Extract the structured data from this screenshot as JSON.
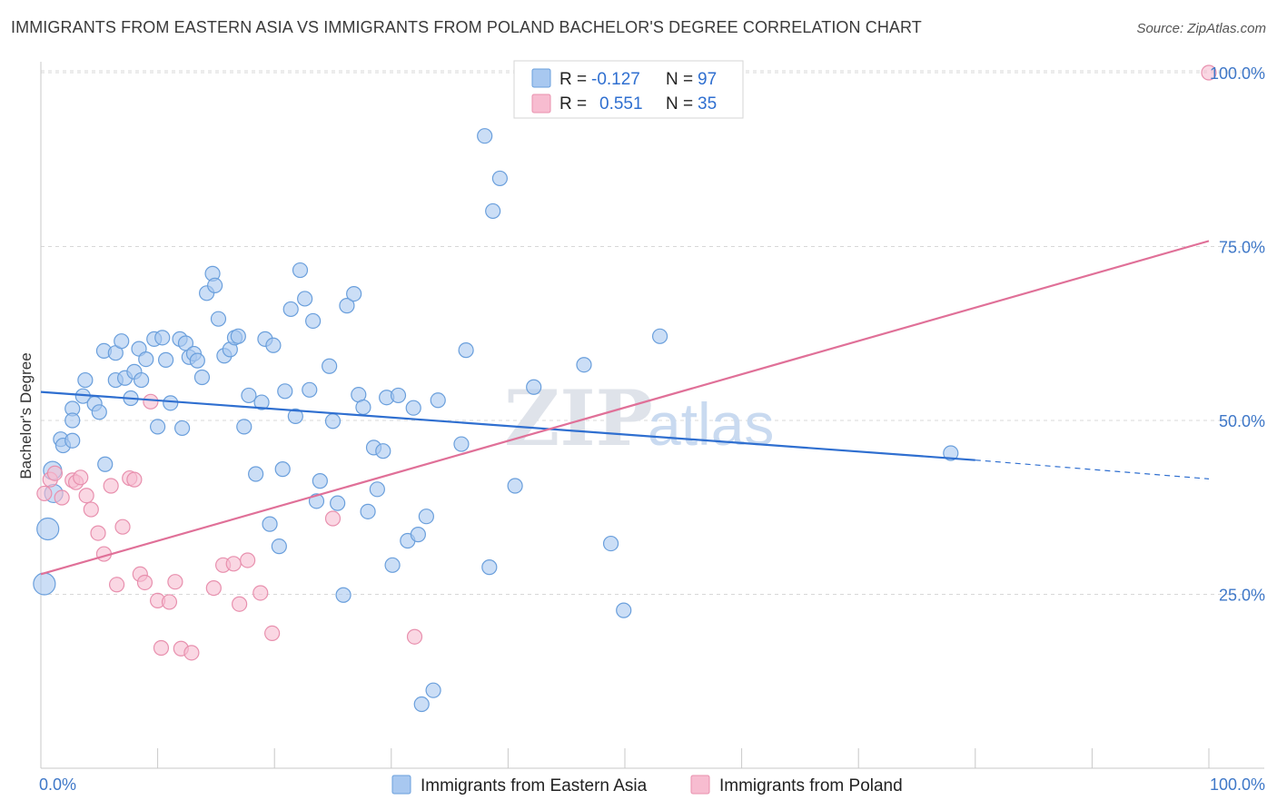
{
  "header": {
    "title": "IMMIGRANTS FROM EASTERN ASIA VS IMMIGRANTS FROM POLAND BACHELOR'S DEGREE CORRELATION CHART",
    "source": "Source: ZipAtlas.com"
  },
  "watermark": {
    "part1": "ZIP",
    "part2": "atlas"
  },
  "legend": {
    "r_label": "R =",
    "n_label": "N =",
    "series1": {
      "r": "-0.127",
      "n": "97"
    },
    "series2": {
      "r": "0.551",
      "n": "35"
    }
  },
  "colors": {
    "blue_fill": "#a8c8f0",
    "blue_stroke": "#6a9fdc",
    "blue_line": "#2f6fd0",
    "pink_fill": "#f7bcd0",
    "pink_stroke": "#e890ae",
    "pink_line": "#e07098",
    "grid": "#d8d8d8",
    "tick_label": "#3f78c8"
  },
  "chart_data": {
    "type": "scatter",
    "title": "IMMIGRANTS FROM EASTERN ASIA VS IMMIGRANTS FROM POLAND BACHELOR'S DEGREE CORRELATION CHART",
    "xlabel": "",
    "ylabel": "Bachelor's Degree",
    "xlim": [
      0,
      100
    ],
    "ylim": [
      0,
      102
    ],
    "x_ticks": [
      "0.0%",
      "100.0%"
    ],
    "y_ticks": [
      {
        "value": 25,
        "label": "25.0%"
      },
      {
        "value": 50,
        "label": "50.0%"
      },
      {
        "value": 75,
        "label": "75.0%"
      },
      {
        "value": 100,
        "label": "100.0%"
      }
    ],
    "grid": "horizontal dashed",
    "legend_position": "top-center",
    "series": [
      {
        "name": "Immigrants from Eastern Asia",
        "color": "#a8c8f0",
        "points": [
          [
            1,
            42.8
          ],
          [
            0.6,
            34.4
          ],
          [
            0.3,
            26.5
          ],
          [
            1.1,
            39.5
          ],
          [
            1.7,
            47.3
          ],
          [
            1.9,
            46.4
          ],
          [
            2.7,
            47.1
          ],
          [
            2.7,
            51.7
          ],
          [
            2.7,
            50.0
          ],
          [
            3.8,
            55.8
          ],
          [
            3.6,
            53.5
          ],
          [
            4.6,
            52.4
          ],
          [
            5.0,
            51.2
          ],
          [
            5.5,
            43.7
          ],
          [
            5.4,
            60.0
          ],
          [
            6.4,
            59.7
          ],
          [
            6.4,
            55.8
          ],
          [
            6.9,
            61.4
          ],
          [
            7.2,
            56.1
          ],
          [
            7.7,
            53.2
          ],
          [
            8.0,
            57.0
          ],
          [
            8.4,
            60.3
          ],
          [
            8.6,
            55.8
          ],
          [
            9.0,
            58.8
          ],
          [
            9.7,
            61.7
          ],
          [
            10.0,
            49.1
          ],
          [
            10.4,
            61.9
          ],
          [
            10.7,
            58.7
          ],
          [
            11.1,
            52.5
          ],
          [
            11.9,
            61.7
          ],
          [
            12.1,
            48.9
          ],
          [
            12.4,
            61.1
          ],
          [
            12.7,
            59.1
          ],
          [
            13.1,
            59.6
          ],
          [
            13.4,
            58.6
          ],
          [
            13.8,
            56.2
          ],
          [
            14.2,
            68.3
          ],
          [
            14.7,
            71.1
          ],
          [
            14.9,
            69.4
          ],
          [
            15.2,
            64.6
          ],
          [
            15.7,
            59.3
          ],
          [
            16.2,
            60.2
          ],
          [
            16.6,
            61.9
          ],
          [
            16.9,
            62.1
          ],
          [
            17.4,
            49.1
          ],
          [
            17.8,
            53.6
          ],
          [
            18.4,
            42.3
          ],
          [
            18.9,
            52.6
          ],
          [
            19.2,
            61.7
          ],
          [
            19.6,
            35.1
          ],
          [
            19.9,
            60.8
          ],
          [
            20.4,
            31.9
          ],
          [
            20.7,
            43.0
          ],
          [
            20.9,
            54.2
          ],
          [
            21.4,
            66.0
          ],
          [
            21.8,
            50.6
          ],
          [
            22.2,
            71.6
          ],
          [
            22.6,
            67.5
          ],
          [
            23.0,
            54.4
          ],
          [
            23.3,
            64.3
          ],
          [
            23.6,
            38.4
          ],
          [
            23.9,
            41.3
          ],
          [
            24.7,
            57.8
          ],
          [
            25.0,
            49.9
          ],
          [
            25.4,
            38.1
          ],
          [
            25.9,
            24.9
          ],
          [
            26.2,
            66.5
          ],
          [
            26.8,
            68.2
          ],
          [
            27.2,
            53.7
          ],
          [
            27.6,
            51.9
          ],
          [
            28.0,
            36.9
          ],
          [
            28.5,
            46.1
          ],
          [
            28.8,
            40.1
          ],
          [
            29.3,
            45.6
          ],
          [
            29.6,
            53.3
          ],
          [
            30.1,
            29.2
          ],
          [
            30.6,
            53.6
          ],
          [
            31.4,
            32.7
          ],
          [
            31.9,
            51.8
          ],
          [
            32.3,
            33.6
          ],
          [
            32.6,
            9.2
          ],
          [
            33.0,
            36.2
          ],
          [
            33.6,
            11.2
          ],
          [
            34.0,
            52.9
          ],
          [
            36.0,
            46.6
          ],
          [
            36.4,
            60.1
          ],
          [
            38.0,
            90.9
          ],
          [
            38.4,
            28.9
          ],
          [
            38.7,
            80.1
          ],
          [
            39.3,
            84.8
          ],
          [
            40.6,
            40.6
          ],
          [
            42.2,
            54.8
          ],
          [
            46.5,
            58.0
          ],
          [
            48.8,
            32.3
          ],
          [
            49.9,
            22.7
          ],
          [
            53.0,
            62.1
          ],
          [
            77.9,
            45.3
          ]
        ]
      },
      {
        "name": "Immigrants from Poland",
        "color": "#f7bcd0",
        "points": [
          [
            0.3,
            39.5
          ],
          [
            0.8,
            41.5
          ],
          [
            1.2,
            42.4
          ],
          [
            1.8,
            38.9
          ],
          [
            2.7,
            41.4
          ],
          [
            3.0,
            41.1
          ],
          [
            3.4,
            41.8
          ],
          [
            3.9,
            39.2
          ],
          [
            4.3,
            37.2
          ],
          [
            4.9,
            33.8
          ],
          [
            5.4,
            30.8
          ],
          [
            6.0,
            40.6
          ],
          [
            6.5,
            26.4
          ],
          [
            7.0,
            34.7
          ],
          [
            7.6,
            41.7
          ],
          [
            8.0,
            41.5
          ],
          [
            8.5,
            27.9
          ],
          [
            8.9,
            26.7
          ],
          [
            9.4,
            52.7
          ],
          [
            10.0,
            24.1
          ],
          [
            10.3,
            17.3
          ],
          [
            11.0,
            23.9
          ],
          [
            11.5,
            26.8
          ],
          [
            12.0,
            17.2
          ],
          [
            12.9,
            16.6
          ],
          [
            14.8,
            25.9
          ],
          [
            15.6,
            29.2
          ],
          [
            16.5,
            29.4
          ],
          [
            17.0,
            23.6
          ],
          [
            17.7,
            29.9
          ],
          [
            18.8,
            25.2
          ],
          [
            19.8,
            19.4
          ],
          [
            25.0,
            35.9
          ],
          [
            32.0,
            18.9
          ],
          [
            100,
            100
          ]
        ]
      }
    ],
    "trendlines": [
      {
        "series": "Immigrants from Eastern Asia",
        "x": [
          0,
          80
        ],
        "y": [
          54.1,
          44.3
        ],
        "dashed_extension": [
          80,
          100
        ],
        "y_end": 41.6
      },
      {
        "series": "Immigrants from Poland",
        "x": [
          0,
          100
        ],
        "y": [
          27.9,
          75.8
        ]
      }
    ]
  }
}
